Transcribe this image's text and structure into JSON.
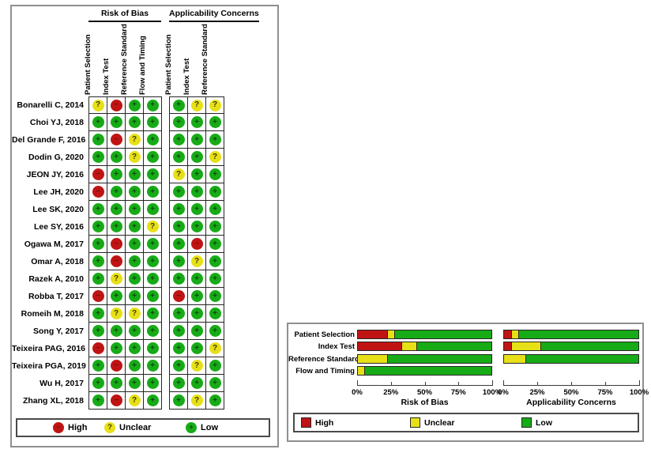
{
  "colors": {
    "high": "#c01414",
    "unclear": "#e7e017",
    "low": "#17ab17",
    "high_sym": "#7e0a0a",
    "unclear_sym": "#3d3a00",
    "low_sym": "#0a4a0a"
  },
  "symbols": {
    "high": "−",
    "unclear": "?",
    "low": "+"
  },
  "legend": {
    "high": "High",
    "unclear": "Unclear",
    "low": "Low"
  },
  "table": {
    "group_headers": [
      "Risk of Bias",
      "Applicability Concerns"
    ],
    "rob_columns": [
      "Patient Selection",
      "Index Test",
      "Reference Standard",
      "Flow and Timing"
    ],
    "app_columns": [
      "Patient Selection",
      "Index Test",
      "Reference Standard"
    ],
    "studies": [
      {
        "name": "Bonarelli C, 2014",
        "rob": [
          "unclear",
          "high",
          "low",
          "low"
        ],
        "app": [
          "low",
          "unclear",
          "unclear"
        ]
      },
      {
        "name": "Choi YJ, 2018",
        "rob": [
          "low",
          "low",
          "low",
          "low"
        ],
        "app": [
          "low",
          "low",
          "low"
        ]
      },
      {
        "name": "Del Grande F, 2016",
        "rob": [
          "low",
          "high",
          "unclear",
          "low"
        ],
        "app": [
          "low",
          "low",
          "low"
        ]
      },
      {
        "name": "Dodin G, 2020",
        "rob": [
          "low",
          "low",
          "unclear",
          "low"
        ],
        "app": [
          "low",
          "low",
          "unclear"
        ]
      },
      {
        "name": "JEON JY, 2016",
        "rob": [
          "high",
          "low",
          "low",
          "low"
        ],
        "app": [
          "unclear",
          "low",
          "low"
        ]
      },
      {
        "name": "Lee JH, 2020",
        "rob": [
          "high",
          "low",
          "low",
          "low"
        ],
        "app": [
          "low",
          "low",
          "low"
        ]
      },
      {
        "name": "Lee SK, 2020",
        "rob": [
          "low",
          "low",
          "low",
          "low"
        ],
        "app": [
          "low",
          "low",
          "low"
        ]
      },
      {
        "name": "Lee SY, 2016",
        "rob": [
          "low",
          "low",
          "low",
          "unclear"
        ],
        "app": [
          "low",
          "low",
          "low"
        ]
      },
      {
        "name": "Ogawa M, 2017",
        "rob": [
          "low",
          "high",
          "low",
          "low"
        ],
        "app": [
          "low",
          "high",
          "low"
        ]
      },
      {
        "name": "Omar A, 2018",
        "rob": [
          "low",
          "high",
          "low",
          "low"
        ],
        "app": [
          "low",
          "unclear",
          "low"
        ]
      },
      {
        "name": "Razek A, 2010",
        "rob": [
          "low",
          "unclear",
          "low",
          "low"
        ],
        "app": [
          "low",
          "low",
          "low"
        ]
      },
      {
        "name": "Robba T, 2017",
        "rob": [
          "high",
          "low",
          "low",
          "low"
        ],
        "app": [
          "high",
          "low",
          "low"
        ]
      },
      {
        "name": "Romeih M, 2018",
        "rob": [
          "low",
          "unclear",
          "unclear",
          "low"
        ],
        "app": [
          "low",
          "low",
          "low"
        ]
      },
      {
        "name": "Song Y, 2017",
        "rob": [
          "low",
          "low",
          "low",
          "low"
        ],
        "app": [
          "low",
          "low",
          "low"
        ]
      },
      {
        "name": "Teixeira PAG, 2016",
        "rob": [
          "high",
          "low",
          "low",
          "low"
        ],
        "app": [
          "low",
          "low",
          "unclear"
        ]
      },
      {
        "name": "Teixeira PGA, 2019",
        "rob": [
          "low",
          "high",
          "low",
          "low"
        ],
        "app": [
          "low",
          "unclear",
          "low"
        ]
      },
      {
        "name": "Wu H, 2017",
        "rob": [
          "low",
          "low",
          "low",
          "low"
        ],
        "app": [
          "low",
          "low",
          "low"
        ]
      },
      {
        "name": "Zhang XL, 2018",
        "rob": [
          "low",
          "high",
          "unclear",
          "low"
        ],
        "app": [
          "low",
          "unclear",
          "low"
        ]
      }
    ]
  },
  "chart_data": [
    {
      "type": "bar",
      "orientation": "horizontal",
      "stacked": true,
      "title": "Risk of Bias",
      "categories": [
        "Patient Selection",
        "Index Test",
        "Reference Standard",
        "Flow and Timing"
      ],
      "series": [
        {
          "name": "High",
          "key": "high",
          "values": [
            22.2,
            33.3,
            0,
            0
          ]
        },
        {
          "name": "Unclear",
          "key": "unclear",
          "values": [
            5.6,
            11.1,
            22.2,
            5.6
          ]
        },
        {
          "name": "Low",
          "key": "low",
          "values": [
            72.2,
            55.6,
            77.8,
            94.4
          ]
        }
      ],
      "x_ticks": [
        "0%",
        "25%",
        "50%",
        "75%",
        "100%"
      ],
      "xlim": [
        0,
        100
      ],
      "legend_position": "bottom"
    },
    {
      "type": "bar",
      "orientation": "horizontal",
      "stacked": true,
      "title": "Applicability Concerns",
      "categories": [
        "Patient Selection",
        "Index Test",
        "Reference Standard"
      ],
      "series": [
        {
          "name": "High",
          "key": "high",
          "values": [
            5.6,
            5.6,
            0
          ]
        },
        {
          "name": "Unclear",
          "key": "unclear",
          "values": [
            5.6,
            22.2,
            16.7
          ]
        },
        {
          "name": "Low",
          "key": "low",
          "values": [
            88.9,
            72.2,
            83.3
          ]
        }
      ],
      "x_ticks": [
        "0%",
        "25%",
        "50%",
        "75%",
        "100%"
      ],
      "xlim": [
        0,
        100
      ],
      "legend_position": "bottom"
    }
  ]
}
